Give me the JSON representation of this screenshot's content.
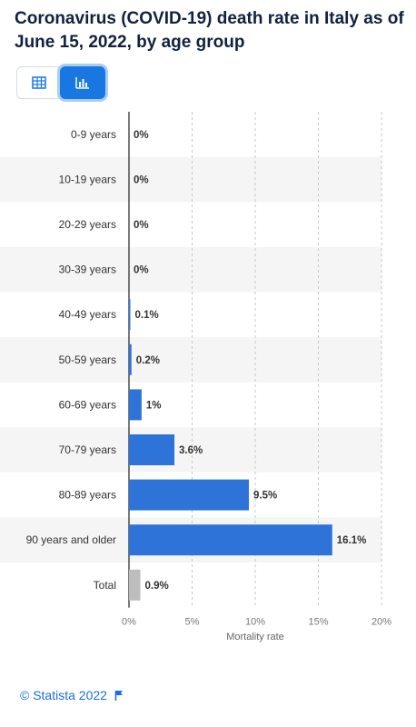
{
  "title": "Coronavirus (COVID-19) death rate in Italy as of June 15, 2022, by age group",
  "footer": {
    "source": "© Statista 2022"
  },
  "icons": {
    "table_toggle": "table-icon",
    "chart_toggle": "bar-chart-icon",
    "flag": "flag-icon"
  },
  "colors": {
    "bar": "#2e74d8",
    "total_bar": "#bdbdbd",
    "accent": "#1877e0"
  },
  "chart_data": {
    "type": "bar",
    "orientation": "horizontal",
    "categories": [
      "0-9 years",
      "10-19 years",
      "20-29 years",
      "30-39 years",
      "40-49 years",
      "50-59 years",
      "60-69 years",
      "70-79 years",
      "80-89 years",
      "90 years and older",
      "Total"
    ],
    "values": [
      0,
      0,
      0,
      0,
      0.1,
      0.2,
      1,
      3.6,
      9.5,
      16.1,
      0.9
    ],
    "value_labels": [
      "0%",
      "0%",
      "0%",
      "0%",
      "0.1%",
      "0.2%",
      "1%",
      "3.6%",
      "9.5%",
      "16.1%",
      "0.9%"
    ],
    "xlabel": "Mortality rate",
    "xlim": [
      0,
      20
    ],
    "ticks": [
      0,
      5,
      10,
      15,
      20
    ],
    "tick_labels": [
      "0%",
      "5%",
      "10%",
      "15%",
      "20%"
    ],
    "grid": true
  }
}
